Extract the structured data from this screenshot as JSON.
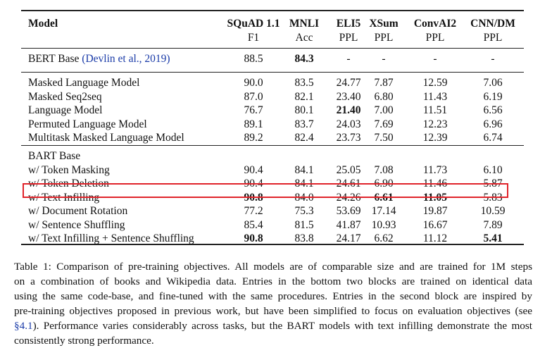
{
  "table": {
    "header": {
      "model": "Model",
      "columns": [
        {
          "name": "SQuAD 1.1",
          "metric": "F1"
        },
        {
          "name": "MNLI",
          "metric": "Acc"
        },
        {
          "name": "ELI5",
          "metric": "PPL"
        },
        {
          "name": "XSum",
          "metric": "PPL"
        },
        {
          "name": "ConvAI2",
          "metric": "PPL"
        },
        {
          "name": "CNN/DM",
          "metric": "PPL"
        }
      ]
    },
    "baseline": {
      "label": "BERT Base",
      "citation": "(Devlin et al., 2019)",
      "values": [
        "88.5",
        "84.3",
        "-",
        "-",
        "-",
        "-"
      ]
    },
    "block1": [
      {
        "label": "Masked Language Model",
        "values": [
          "90.0",
          "83.5",
          "24.77",
          "7.87",
          "12.59",
          "7.06"
        ]
      },
      {
        "label": "Masked Seq2seq",
        "values": [
          "87.0",
          "82.1",
          "23.40",
          "6.80",
          "11.43",
          "6.19"
        ]
      },
      {
        "label": "Language Model",
        "values": [
          "76.7",
          "80.1",
          "21.40",
          "7.00",
          "11.51",
          "6.56"
        ]
      },
      {
        "label": "Permuted Language Model",
        "values": [
          "89.1",
          "83.7",
          "24.03",
          "7.69",
          "12.23",
          "6.96"
        ]
      },
      {
        "label": "Multitask Masked Language Model",
        "values": [
          "89.2",
          "82.4",
          "23.73",
          "7.50",
          "12.39",
          "6.74"
        ]
      }
    ],
    "block2_title": "BART Base",
    "block2": [
      {
        "label": "w/ Token Masking",
        "values": [
          "90.4",
          "84.1",
          "25.05",
          "7.08",
          "11.73",
          "6.10"
        ]
      },
      {
        "label": "w/ Token Deletion",
        "values": [
          "90.4",
          "84.1",
          "24.61",
          "6.90",
          "11.46",
          "5.87"
        ]
      },
      {
        "label": "w/ Text Infilling",
        "values": [
          "90.8",
          "84.0",
          "24.26",
          "6.61",
          "11.05",
          "5.83"
        ]
      },
      {
        "label": "w/ Document Rotation",
        "values": [
          "77.2",
          "75.3",
          "53.69",
          "17.14",
          "19.87",
          "10.59"
        ]
      },
      {
        "label": "w/ Sentence Shuffling",
        "values": [
          "85.4",
          "81.5",
          "41.87",
          "10.93",
          "16.67",
          "7.89"
        ]
      },
      {
        "label": "w/ Text Infilling + Sentence Shuffling",
        "values": [
          "90.8",
          "83.8",
          "24.17",
          "6.62",
          "11.12",
          "5.41"
        ]
      }
    ]
  },
  "caption": {
    "line1": "Table 1: Comparison of pre-training objectives. All models are of comparable size and are trained for 1M steps",
    "line2": "on a combination of books and Wikipedia data. Entries in the bottom two blocks are trained on identical data",
    "line3": "using the same code-base, and fine-tuned with the same procedures. Entries in the second block are inspired by",
    "line4": "pre-training objectives proposed in previous work, but have been simplified to focus on evaluation objectives (see",
    "line5_ref": "§4.1",
    "line5_rest": "). Performance varies considerably across tasks, but the BART models with text infilling demonstrate the most",
    "line6": "consistently strong performance."
  }
}
